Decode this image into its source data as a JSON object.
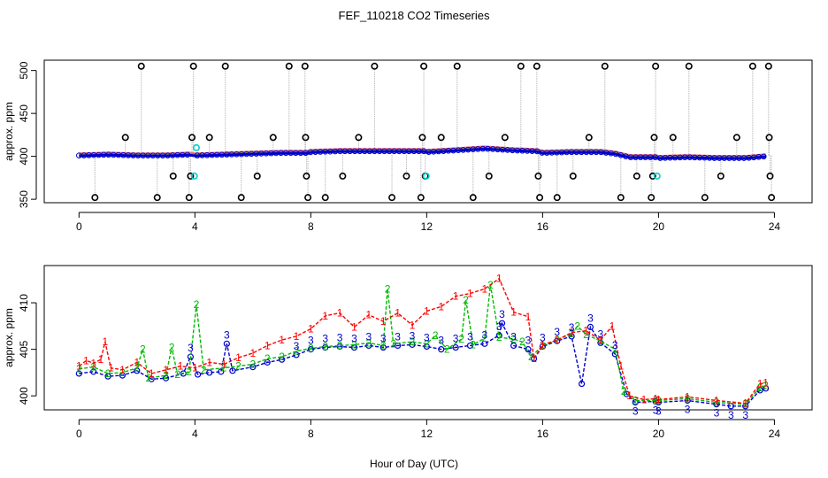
{
  "chart_data": [
    {
      "type": "line",
      "title": "FEF_110218  CO2 Timeseries",
      "xlabel": "",
      "ylabel": "approx. ppm",
      "xlim": [
        -1.2,
        25.3
      ],
      "ylim": [
        346,
        512
      ],
      "x_ticks": [
        0,
        4,
        8,
        12,
        16,
        20,
        24
      ],
      "y_ticks": [
        350,
        400,
        450,
        500
      ],
      "colors": {
        "s1": "#ff0000",
        "s2": "#00bb00",
        "s3": "#0000cc",
        "ref": "#000000",
        "cyan": "#00cccc",
        "line": "#bbbbbb"
      },
      "baseline": [
        {
          "x": 0.0,
          "y": 402
        },
        {
          "x": 1.0,
          "y": 403
        },
        {
          "x": 2.0,
          "y": 402
        },
        {
          "x": 3.0,
          "y": 402
        },
        {
          "x": 3.8,
          "y": 403
        },
        {
          "x": 4.0,
          "y": 402
        },
        {
          "x": 5.0,
          "y": 403
        },
        {
          "x": 6.0,
          "y": 404
        },
        {
          "x": 7.0,
          "y": 405
        },
        {
          "x": 7.9,
          "y": 405
        },
        {
          "x": 8.0,
          "y": 406
        },
        {
          "x": 9.0,
          "y": 407
        },
        {
          "x": 10.0,
          "y": 407
        },
        {
          "x": 11.0,
          "y": 407
        },
        {
          "x": 11.9,
          "y": 407
        },
        {
          "x": 12.0,
          "y": 406
        },
        {
          "x": 13.0,
          "y": 408
        },
        {
          "x": 14.0,
          "y": 410
        },
        {
          "x": 15.0,
          "y": 408
        },
        {
          "x": 15.8,
          "y": 407
        },
        {
          "x": 16.0,
          "y": 405
        },
        {
          "x": 17.0,
          "y": 406
        },
        {
          "x": 17.5,
          "y": 406
        },
        {
          "x": 18.0,
          "y": 406
        },
        {
          "x": 18.5,
          "y": 404
        },
        {
          "x": 19.0,
          "y": 400
        },
        {
          "x": 19.9,
          "y": 400
        },
        {
          "x": 20.0,
          "y": 399
        },
        {
          "x": 21.0,
          "y": 400
        },
        {
          "x": 22.0,
          "y": 399
        },
        {
          "x": 23.0,
          "y": 399
        },
        {
          "x": 23.7,
          "y": 401
        }
      ],
      "reference_points": [
        {
          "x": 0.55,
          "y": 352
        },
        {
          "x": 1.6,
          "y": 422
        },
        {
          "x": 2.15,
          "y": 505
        },
        {
          "x": 2.7,
          "y": 352
        },
        {
          "x": 3.25,
          "y": 377
        },
        {
          "x": 3.8,
          "y": 352
        },
        {
          "x": 3.9,
          "y": 422
        },
        {
          "x": 3.95,
          "y": 505
        },
        {
          "x": 3.85,
          "y": 377
        },
        {
          "x": 4.5,
          "y": 422
        },
        {
          "x": 5.05,
          "y": 505
        },
        {
          "x": 5.6,
          "y": 352
        },
        {
          "x": 6.15,
          "y": 377
        },
        {
          "x": 6.7,
          "y": 422
        },
        {
          "x": 7.25,
          "y": 505
        },
        {
          "x": 7.8,
          "y": 505
        },
        {
          "x": 7.82,
          "y": 422
        },
        {
          "x": 7.85,
          "y": 377
        },
        {
          "x": 7.9,
          "y": 352
        },
        {
          "x": 8.5,
          "y": 352
        },
        {
          "x": 9.1,
          "y": 377
        },
        {
          "x": 9.65,
          "y": 422
        },
        {
          "x": 10.2,
          "y": 505
        },
        {
          "x": 10.8,
          "y": 352
        },
        {
          "x": 11.3,
          "y": 377
        },
        {
          "x": 11.8,
          "y": 352
        },
        {
          "x": 11.85,
          "y": 422
        },
        {
          "x": 11.9,
          "y": 505
        },
        {
          "x": 11.95,
          "y": 377
        },
        {
          "x": 12.5,
          "y": 422
        },
        {
          "x": 13.05,
          "y": 505
        },
        {
          "x": 13.6,
          "y": 352
        },
        {
          "x": 14.15,
          "y": 377
        },
        {
          "x": 14.7,
          "y": 422
        },
        {
          "x": 15.25,
          "y": 505
        },
        {
          "x": 15.8,
          "y": 505
        },
        {
          "x": 15.85,
          "y": 377
        },
        {
          "x": 15.9,
          "y": 352
        },
        {
          "x": 16.5,
          "y": 352
        },
        {
          "x": 17.05,
          "y": 377
        },
        {
          "x": 17.6,
          "y": 422
        },
        {
          "x": 18.15,
          "y": 505
        },
        {
          "x": 18.7,
          "y": 352
        },
        {
          "x": 19.25,
          "y": 377
        },
        {
          "x": 19.75,
          "y": 352
        },
        {
          "x": 19.8,
          "y": 377
        },
        {
          "x": 19.85,
          "y": 422
        },
        {
          "x": 19.9,
          "y": 505
        },
        {
          "x": 20.5,
          "y": 422
        },
        {
          "x": 21.05,
          "y": 505
        },
        {
          "x": 21.6,
          "y": 352
        },
        {
          "x": 22.15,
          "y": 377
        },
        {
          "x": 22.7,
          "y": 422
        },
        {
          "x": 23.25,
          "y": 505
        },
        {
          "x": 23.8,
          "y": 505
        },
        {
          "x": 23.82,
          "y": 422
        },
        {
          "x": 23.85,
          "y": 377
        },
        {
          "x": 23.9,
          "y": 352
        }
      ],
      "highlight_points": [
        {
          "x": 3.98,
          "y": 377
        },
        {
          "x": 4.05,
          "y": 410
        },
        {
          "x": 11.98,
          "y": 377
        },
        {
          "x": 19.95,
          "y": 377
        }
      ]
    },
    {
      "type": "line",
      "title": "",
      "xlabel": "Hour of Day (UTC)",
      "ylabel": "approx. ppm",
      "xlim": [
        -1.2,
        25.3
      ],
      "ylim": [
        398.5,
        414.0
      ],
      "x_ticks": [
        0,
        4,
        8,
        12,
        16,
        20,
        24
      ],
      "y_ticks": [
        400,
        405,
        410
      ],
      "series": [
        {
          "name": "1",
          "color": "#ff0000",
          "points": [
            {
              "x": 0.0,
              "y": 403.2
            },
            {
              "x": 0.25,
              "y": 403.8
            },
            {
              "x": 0.5,
              "y": 403.5
            },
            {
              "x": 0.75,
              "y": 403.9
            },
            {
              "x": 0.9,
              "y": 405.8
            },
            {
              "x": 1.1,
              "y": 403.0
            },
            {
              "x": 1.5,
              "y": 402.8
            },
            {
              "x": 2.0,
              "y": 403.6
            },
            {
              "x": 2.5,
              "y": 402.4
            },
            {
              "x": 3.0,
              "y": 402.8
            },
            {
              "x": 3.5,
              "y": 403.2
            },
            {
              "x": 4.0,
              "y": 403.0
            },
            {
              "x": 4.5,
              "y": 403.6
            },
            {
              "x": 5.0,
              "y": 403.4
            },
            {
              "x": 5.5,
              "y": 404.1
            },
            {
              "x": 6.0,
              "y": 404.6
            },
            {
              "x": 6.5,
              "y": 405.4
            },
            {
              "x": 7.0,
              "y": 406.0
            },
            {
              "x": 7.5,
              "y": 406.4
            },
            {
              "x": 8.0,
              "y": 407.2
            },
            {
              "x": 8.5,
              "y": 408.6
            },
            {
              "x": 9.0,
              "y": 408.9
            },
            {
              "x": 9.5,
              "y": 407.4
            },
            {
              "x": 10.0,
              "y": 408.7
            },
            {
              "x": 10.5,
              "y": 408.0
            },
            {
              "x": 11.0,
              "y": 408.9
            },
            {
              "x": 11.5,
              "y": 407.6
            },
            {
              "x": 12.0,
              "y": 409.1
            },
            {
              "x": 12.5,
              "y": 409.6
            },
            {
              "x": 13.0,
              "y": 410.7
            },
            {
              "x": 13.5,
              "y": 411.0
            },
            {
              "x": 14.0,
              "y": 411.5
            },
            {
              "x": 14.5,
              "y": 412.6
            },
            {
              "x": 15.0,
              "y": 409.0
            },
            {
              "x": 15.5,
              "y": 408.5
            },
            {
              "x": 15.7,
              "y": 404.0
            },
            {
              "x": 16.0,
              "y": 405.5
            },
            {
              "x": 16.5,
              "y": 406.0
            },
            {
              "x": 17.0,
              "y": 406.8
            },
            {
              "x": 17.5,
              "y": 407.0
            },
            {
              "x": 18.0,
              "y": 406.0
            },
            {
              "x": 18.4,
              "y": 407.5
            },
            {
              "x": 18.7,
              "y": 403.2
            },
            {
              "x": 19.0,
              "y": 400.0
            },
            {
              "x": 19.5,
              "y": 399.6
            },
            {
              "x": 19.9,
              "y": 399.7
            },
            {
              "x": 20.0,
              "y": 399.6
            },
            {
              "x": 21.0,
              "y": 399.9
            },
            {
              "x": 22.0,
              "y": 399.5
            },
            {
              "x": 23.0,
              "y": 399.2
            },
            {
              "x": 23.5,
              "y": 401.3
            },
            {
              "x": 23.7,
              "y": 401.4
            }
          ]
        },
        {
          "name": "2",
          "color": "#00bb00",
          "points": [
            {
              "x": 0.0,
              "y": 402.9
            },
            {
              "x": 0.5,
              "y": 403.1
            },
            {
              "x": 1.0,
              "y": 402.4
            },
            {
              "x": 1.5,
              "y": 402.5
            },
            {
              "x": 2.0,
              "y": 403.0
            },
            {
              "x": 2.2,
              "y": 405.0
            },
            {
              "x": 2.4,
              "y": 401.9
            },
            {
              "x": 3.0,
              "y": 402.2
            },
            {
              "x": 3.2,
              "y": 405.2
            },
            {
              "x": 3.4,
              "y": 402.3
            },
            {
              "x": 3.8,
              "y": 402.6
            },
            {
              "x": 4.05,
              "y": 409.8
            },
            {
              "x": 4.3,
              "y": 402.8
            },
            {
              "x": 5.0,
              "y": 403.0
            },
            {
              "x": 5.5,
              "y": 403.2
            },
            {
              "x": 6.0,
              "y": 403.4
            },
            {
              "x": 6.5,
              "y": 404.0
            },
            {
              "x": 7.0,
              "y": 404.2
            },
            {
              "x": 7.5,
              "y": 404.8
            },
            {
              "x": 8.0,
              "y": 405.1
            },
            {
              "x": 8.5,
              "y": 405.3
            },
            {
              "x": 9.0,
              "y": 405.4
            },
            {
              "x": 9.5,
              "y": 405.5
            },
            {
              "x": 10.0,
              "y": 405.7
            },
            {
              "x": 10.5,
              "y": 405.4
            },
            {
              "x": 10.65,
              "y": 411.5
            },
            {
              "x": 10.85,
              "y": 405.6
            },
            {
              "x": 11.5,
              "y": 405.8
            },
            {
              "x": 12.0,
              "y": 405.6
            },
            {
              "x": 12.3,
              "y": 406.5
            },
            {
              "x": 12.7,
              "y": 405.0
            },
            {
              "x": 13.2,
              "y": 406.1
            },
            {
              "x": 13.35,
              "y": 410.3
            },
            {
              "x": 13.6,
              "y": 405.5
            },
            {
              "x": 14.0,
              "y": 406.2
            },
            {
              "x": 14.2,
              "y": 411.9
            },
            {
              "x": 14.5,
              "y": 406.3
            },
            {
              "x": 15.0,
              "y": 406.1
            },
            {
              "x": 15.3,
              "y": 405.8
            },
            {
              "x": 15.6,
              "y": 404.2
            },
            {
              "x": 16.0,
              "y": 405.4
            },
            {
              "x": 16.5,
              "y": 406.0
            },
            {
              "x": 17.0,
              "y": 406.7
            },
            {
              "x": 17.2,
              "y": 407.5
            },
            {
              "x": 17.5,
              "y": 406.6
            },
            {
              "x": 18.0,
              "y": 405.9
            },
            {
              "x": 18.5,
              "y": 405.0
            },
            {
              "x": 18.8,
              "y": 400.5
            },
            {
              "x": 19.2,
              "y": 399.5
            },
            {
              "x": 19.9,
              "y": 399.5
            },
            {
              "x": 20.0,
              "y": 399.5
            },
            {
              "x": 21.0,
              "y": 399.7
            },
            {
              "x": 22.0,
              "y": 399.3
            },
            {
              "x": 23.0,
              "y": 399.1
            },
            {
              "x": 23.5,
              "y": 400.9
            },
            {
              "x": 23.7,
              "y": 401.1
            }
          ]
        },
        {
          "name": "3",
          "color": "#0000cc",
          "points": [
            {
              "x": 0.0,
              "y": 402.4
            },
            {
              "x": 0.5,
              "y": 402.6
            },
            {
              "x": 1.0,
              "y": 402.1
            },
            {
              "x": 1.5,
              "y": 402.2
            },
            {
              "x": 2.0,
              "y": 402.7
            },
            {
              "x": 2.5,
              "y": 401.8
            },
            {
              "x": 3.0,
              "y": 401.9
            },
            {
              "x": 3.6,
              "y": 402.4
            },
            {
              "x": 3.85,
              "y": 404.2
            },
            {
              "x": 4.1,
              "y": 402.3
            },
            {
              "x": 4.5,
              "y": 402.5
            },
            {
              "x": 4.9,
              "y": 402.6
            },
            {
              "x": 5.1,
              "y": 405.6
            },
            {
              "x": 5.3,
              "y": 402.7
            },
            {
              "x": 6.0,
              "y": 403.1
            },
            {
              "x": 6.5,
              "y": 403.6
            },
            {
              "x": 7.0,
              "y": 403.9
            },
            {
              "x": 7.5,
              "y": 404.4
            },
            {
              "x": 8.0,
              "y": 405.0
            },
            {
              "x": 8.5,
              "y": 405.2
            },
            {
              "x": 9.0,
              "y": 405.3
            },
            {
              "x": 9.5,
              "y": 405.2
            },
            {
              "x": 10.0,
              "y": 405.4
            },
            {
              "x": 10.5,
              "y": 405.2
            },
            {
              "x": 11.0,
              "y": 405.4
            },
            {
              "x": 11.5,
              "y": 405.5
            },
            {
              "x": 12.0,
              "y": 405.3
            },
            {
              "x": 12.5,
              "y": 405.0
            },
            {
              "x": 13.0,
              "y": 405.2
            },
            {
              "x": 13.5,
              "y": 405.4
            },
            {
              "x": 14.0,
              "y": 405.6
            },
            {
              "x": 14.5,
              "y": 406.5
            },
            {
              "x": 14.6,
              "y": 407.8
            },
            {
              "x": 15.0,
              "y": 405.4
            },
            {
              "x": 15.5,
              "y": 405.0
            },
            {
              "x": 15.7,
              "y": 404.0
            },
            {
              "x": 16.0,
              "y": 405.3
            },
            {
              "x": 16.5,
              "y": 405.9
            },
            {
              "x": 17.0,
              "y": 406.4
            },
            {
              "x": 17.35,
              "y": 401.3
            },
            {
              "x": 17.65,
              "y": 407.4
            },
            {
              "x": 18.0,
              "y": 405.7
            },
            {
              "x": 18.5,
              "y": 404.5
            },
            {
              "x": 18.9,
              "y": 400.2
            },
            {
              "x": 19.2,
              "y": 399.3
            },
            {
              "x": 19.9,
              "y": 399.4
            },
            {
              "x": 20.0,
              "y": 399.3
            },
            {
              "x": 21.0,
              "y": 399.5
            },
            {
              "x": 22.0,
              "y": 399.1
            },
            {
              "x": 22.5,
              "y": 398.9
            },
            {
              "x": 23.0,
              "y": 398.9
            },
            {
              "x": 23.5,
              "y": 400.6
            },
            {
              "x": 23.7,
              "y": 400.8
            }
          ]
        }
      ]
    }
  ]
}
